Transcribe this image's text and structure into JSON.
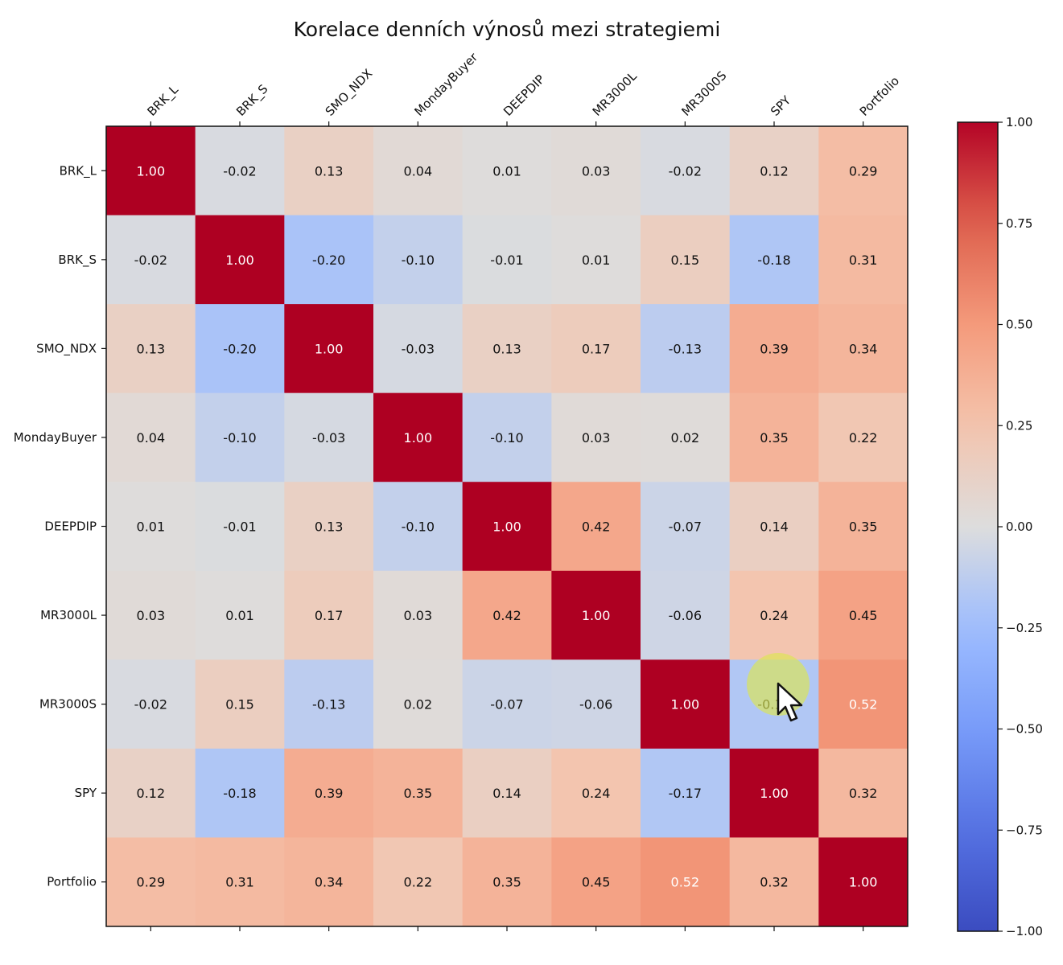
{
  "chart_data": {
    "type": "heatmap",
    "title": "Korelace denních výnosů mezi strategiemi",
    "xlabel": "",
    "ylabel": "",
    "labels": [
      "BRK_L",
      "BRK_S",
      "SMO_NDX",
      "MondayBuyer",
      "DEEPDIP",
      "MR3000L",
      "MR3000S",
      "SPY",
      "Portfolio"
    ],
    "matrix": [
      [
        1.0,
        -0.02,
        0.13,
        0.04,
        0.01,
        0.03,
        -0.02,
        0.12,
        0.29
      ],
      [
        -0.02,
        1.0,
        -0.2,
        -0.1,
        -0.01,
        0.01,
        0.15,
        -0.18,
        0.31
      ],
      [
        0.13,
        -0.2,
        1.0,
        -0.03,
        0.13,
        0.17,
        -0.13,
        0.39,
        0.34
      ],
      [
        0.04,
        -0.1,
        -0.03,
        1.0,
        -0.1,
        0.03,
        0.02,
        0.35,
        0.22
      ],
      [
        0.01,
        -0.01,
        0.13,
        -0.1,
        1.0,
        0.42,
        -0.07,
        0.14,
        0.35
      ],
      [
        0.03,
        0.01,
        0.17,
        0.03,
        0.42,
        1.0,
        -0.06,
        0.24,
        0.45
      ],
      [
        -0.02,
        0.15,
        -0.13,
        0.02,
        -0.07,
        -0.06,
        1.0,
        -0.17,
        0.52
      ],
      [
        0.12,
        -0.18,
        0.39,
        0.35,
        0.14,
        0.24,
        -0.17,
        1.0,
        0.32
      ],
      [
        0.29,
        0.31,
        0.34,
        0.22,
        0.35,
        0.45,
        0.52,
        0.32,
        1.0
      ]
    ],
    "value_format": "0.00",
    "colormap": "coolwarm",
    "vmin": -1.0,
    "vmax": 1.0,
    "x_tick_position": "top",
    "x_tick_rotation_deg": 45,
    "grid": false,
    "colorbar": {
      "placement": "right",
      "ticks": [
        1.0,
        0.75,
        0.5,
        0.25,
        0.0,
        -0.25,
        -0.5,
        -0.75,
        -1.0
      ],
      "tick_labels": [
        "1.00",
        "0.75",
        "0.50",
        "0.25",
        "0.00",
        "−0.25",
        "−0.50",
        "−0.75",
        "−1.00"
      ]
    }
  },
  "colors": {
    "low": "#3b4cc0",
    "mid": "#dddddd",
    "high": "#b40426",
    "text_dark": "#111111",
    "text_light": "#ffffff"
  },
  "cursor": {
    "icon": "mouse-pointer-icon",
    "highlight": "yellow-click-highlight"
  }
}
